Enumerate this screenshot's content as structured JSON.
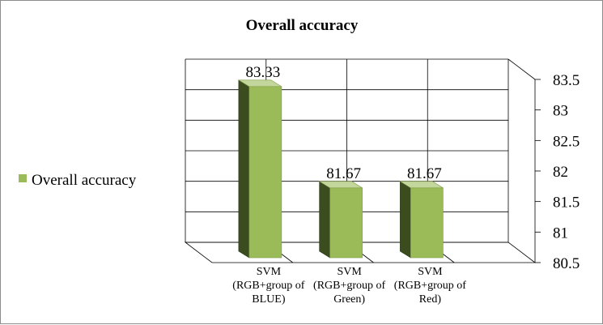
{
  "chart_data": {
    "type": "bar",
    "title": "Overall accuracy",
    "categories": [
      [
        "SVM",
        "(RGB+group of",
        "BLUE)"
      ],
      [
        "SVM",
        "(RGB+group of",
        "Green)"
      ],
      [
        "SVM",
        "(RGB+group of",
        "Red)"
      ]
    ],
    "series": [
      {
        "name": "Overall accuracy",
        "values": [
          83.33,
          81.67,
          81.67
        ],
        "data_labels": [
          "83.33",
          "81.67",
          "81.67"
        ]
      }
    ],
    "ylim": [
      80.5,
      83.5
    ],
    "yticks": [
      "80.5",
      "81",
      "81.5",
      "82",
      "82.5",
      "83",
      "83.5"
    ],
    "y_axis_side": "right",
    "grid": true,
    "legend_position": "left",
    "style_3d": true,
    "colors": {
      "bar_front": "#9bbb59",
      "bar_side": "#3b4d1f",
      "bar_top": "#c3d69b",
      "grid": "#000000",
      "frame": "#8c8c8c"
    }
  }
}
